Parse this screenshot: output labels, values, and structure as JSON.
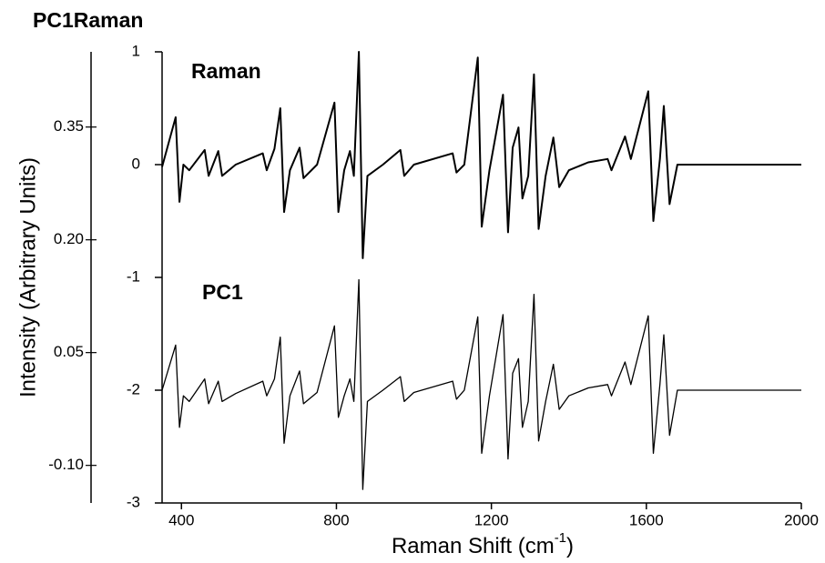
{
  "chart_data": {
    "type": "line",
    "title": "PC1Raman",
    "y_label": "Intensity (Arbitrary Units)",
    "x_label": [
      "Raman Shift (cm",
      "-1",
      ")"
    ],
    "x": [
      350,
      385,
      395,
      405,
      420,
      460,
      470,
      495,
      505,
      540,
      610,
      620,
      640,
      655,
      665,
      680,
      705,
      715,
      750,
      795,
      805,
      820,
      835,
      845,
      858,
      868,
      880,
      920,
      965,
      975,
      1000,
      1100,
      1110,
      1130,
      1165,
      1175,
      1195,
      1230,
      1243,
      1255,
      1270,
      1280,
      1295,
      1310,
      1322,
      1340,
      1360,
      1375,
      1400,
      1450,
      1500,
      1510,
      1545,
      1560,
      1605,
      1618,
      1635,
      1645,
      1660,
      1680,
      2000
    ],
    "series": [
      {
        "name": "Raman",
        "color": "#000000",
        "values": [
          -0.02,
          0.42,
          -0.33,
          0,
          -0.05,
          0.13,
          -0.1,
          0.12,
          -0.1,
          0,
          0.1,
          -0.05,
          0.14,
          0.5,
          -0.42,
          -0.05,
          0.15,
          -0.12,
          0,
          0.55,
          -0.42,
          -0.05,
          0.12,
          -0.1,
          1.0,
          -0.83,
          -0.1,
          0,
          0.13,
          -0.1,
          0,
          0.1,
          -0.07,
          0,
          0.95,
          -0.55,
          -0.05,
          0.62,
          -0.6,
          0.15,
          0.33,
          -0.3,
          -0.1,
          0.8,
          -0.57,
          -0.1,
          0.24,
          -0.2,
          -0.05,
          0.02,
          0.05,
          -0.05,
          0.25,
          0.05,
          0.65,
          -0.5,
          0.05,
          0.52,
          -0.35,
          0,
          0
        ]
      },
      {
        "name": "PC1",
        "color": "#000000",
        "values": [
          -2.0,
          -1.6,
          -2.33,
          -2.05,
          -2.1,
          -1.9,
          -2.12,
          -1.92,
          -2.1,
          -2.03,
          -1.92,
          -2.05,
          -1.9,
          -1.53,
          -2.47,
          -2.05,
          -1.83,
          -2.12,
          -2.02,
          -1.43,
          -2.24,
          -2.05,
          -1.9,
          -2.1,
          -1.02,
          -2.88,
          -2.1,
          -2.0,
          -1.88,
          -2.1,
          -2.02,
          -1.92,
          -2.08,
          -2.0,
          -1.35,
          -2.56,
          -2.05,
          -1.33,
          -2.61,
          -1.85,
          -1.72,
          -2.33,
          -2.1,
          -1.15,
          -2.45,
          -2.1,
          -1.77,
          -2.17,
          -2.05,
          -1.98,
          -1.95,
          -2.05,
          -1.75,
          -1.95,
          -1.34,
          -2.56,
          -1.95,
          -1.51,
          -2.4,
          -2.0,
          -2.0
        ]
      }
    ],
    "xlim": [
      350,
      2000
    ],
    "xticks": [
      400,
      800,
      1200,
      1600,
      2000
    ],
    "ylim": [
      -3,
      1
    ],
    "yticks": [
      1,
      0,
      -1,
      -2,
      -3
    ],
    "y2lim": [
      -0.15,
      0.45
    ],
    "y2ticks": [
      0.35,
      {
        "value": 0.2,
        "label": "0.20"
      },
      0.05,
      {
        "value": -0.1,
        "label": "-0.10"
      }
    ]
  }
}
